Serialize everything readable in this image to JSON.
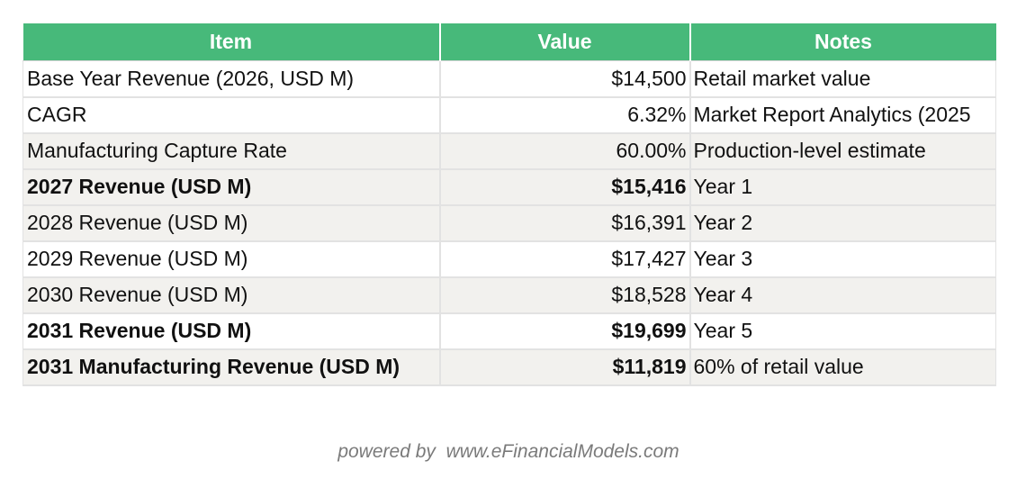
{
  "table": {
    "headers": [
      "Item",
      "Value",
      "Notes"
    ],
    "rows": [
      {
        "item": "Base Year Revenue (2026, USD M)",
        "value": "$14,500",
        "notes": "Retail market value",
        "bold": false,
        "shade": false
      },
      {
        "item": "CAGR",
        "value": "6.32%",
        "notes": "Market Report Analytics (2025",
        "bold": false,
        "shade": false
      },
      {
        "item": "Manufacturing Capture Rate",
        "value": "60.00%",
        "notes": "Production-level estimate",
        "bold": false,
        "shade": true
      },
      {
        "item": "2027 Revenue (USD M)",
        "value": "$15,416",
        "notes": "Year 1",
        "bold": true,
        "shade": true
      },
      {
        "item": "2028 Revenue (USD M)",
        "value": "$16,391",
        "notes": "Year 2",
        "bold": false,
        "shade": true
      },
      {
        "item": "2029 Revenue (USD M)",
        "value": "$17,427",
        "notes": "Year 3",
        "bold": false,
        "shade": false
      },
      {
        "item": "2030 Revenue (USD M)",
        "value": "$18,528",
        "notes": "Year 4",
        "bold": false,
        "shade": true
      },
      {
        "item": "2031 Revenue (USD M)",
        "value": "$19,699",
        "notes": "Year 5",
        "bold": true,
        "shade": false
      },
      {
        "item": "2031 Manufacturing Revenue (USD M)",
        "value": "$11,819",
        "notes": "60% of retail value",
        "bold": true,
        "shade": true
      }
    ]
  },
  "footer": {
    "text": "powered by  www.eFinancialModels.com"
  },
  "colors": {
    "header_bg": "#47b97a",
    "header_text": "#ffffff",
    "row_shade": "#f2f1ee",
    "footer_text": "#7a7a7a"
  }
}
